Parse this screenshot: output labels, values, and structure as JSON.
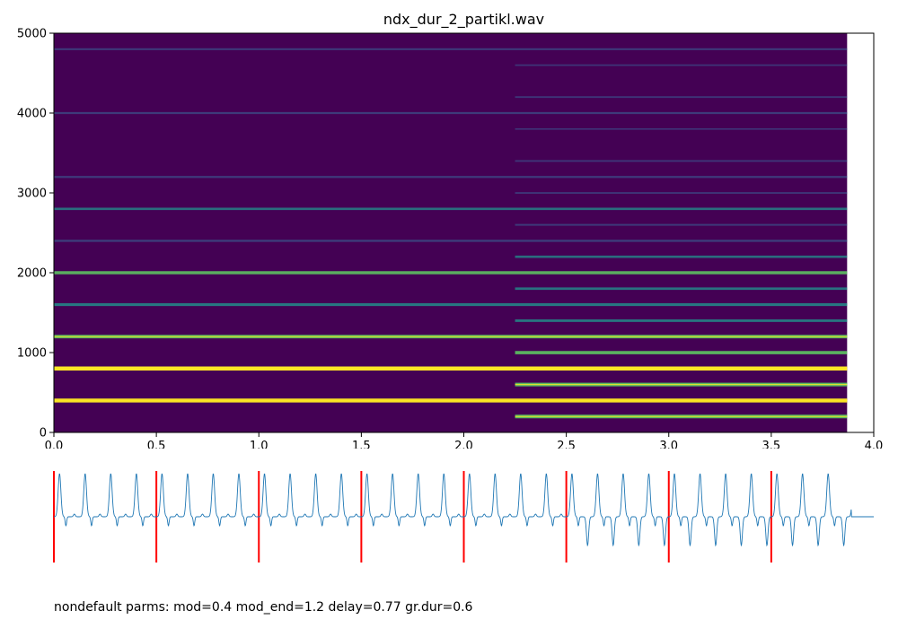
{
  "title": "ndx_dur_2_partikl.wav",
  "footer": "nondefault parms: mod=0.4 mod_end=1.2 delay=0.77 gr.dur=0.6",
  "colors": {
    "background": "#440154",
    "partial_weak": "#3b528b",
    "partial_mid": "#21918c",
    "partial_strong": "#5ec962",
    "partial_peak": "#fde725",
    "waveform": "#1f77b4",
    "markers": "#ff0000"
  },
  "chart_data": [
    {
      "type": "heatmap",
      "title": "ndx_dur_2_partikl.wav",
      "xlabel": "",
      "ylabel": "",
      "xlim": [
        0,
        4.0
      ],
      "ylim": [
        0,
        5000
      ],
      "x_ticks": [
        0.0,
        0.5,
        1.0,
        1.5,
        2.0,
        2.5,
        3.0,
        3.5,
        4.0
      ],
      "x_tick_labels": [
        "0.0",
        "0.5",
        "1.0",
        "1.5",
        "2.0",
        "2.5",
        "3.0",
        "3.5",
        "4.0"
      ],
      "y_ticks": [
        0,
        1000,
        2000,
        3000,
        4000,
        5000
      ],
      "y_tick_labels": [
        "0",
        "1000",
        "2000",
        "3000",
        "4000",
        "5000"
      ],
      "data_end_time": 3.87,
      "partials_segment_1": {
        "t_start": 0.0,
        "t_end": 3.87,
        "freq_step": 400,
        "frequencies": [
          400,
          800,
          1200,
          1600,
          2000,
          2400,
          2800,
          3200,
          4000,
          4800
        ],
        "intensity": [
          0.95,
          1.0,
          0.8,
          0.6,
          0.7,
          0.4,
          0.45,
          0.35,
          0.35,
          0.3
        ]
      },
      "partials_segment_2": {
        "t_start": 2.25,
        "t_end": 3.87,
        "freq_step": 200,
        "frequencies": [
          200,
          600,
          1000,
          1400,
          1800,
          2200,
          2600,
          3000,
          3400,
          3800,
          4200,
          4600
        ],
        "intensity": [
          0.85,
          0.85,
          0.75,
          0.55,
          0.5,
          0.45,
          0.3,
          0.25,
          0.25,
          0.2,
          0.25,
          0.2
        ]
      }
    },
    {
      "type": "line",
      "description_series": "waveform",
      "xlim": [
        0,
        4.0
      ],
      "period": 0.125,
      "markers_x": [
        0.0,
        0.5,
        1.0,
        1.5,
        2.0,
        2.5,
        3.0,
        3.5
      ],
      "amplitude_change_time": 2.5
    }
  ]
}
